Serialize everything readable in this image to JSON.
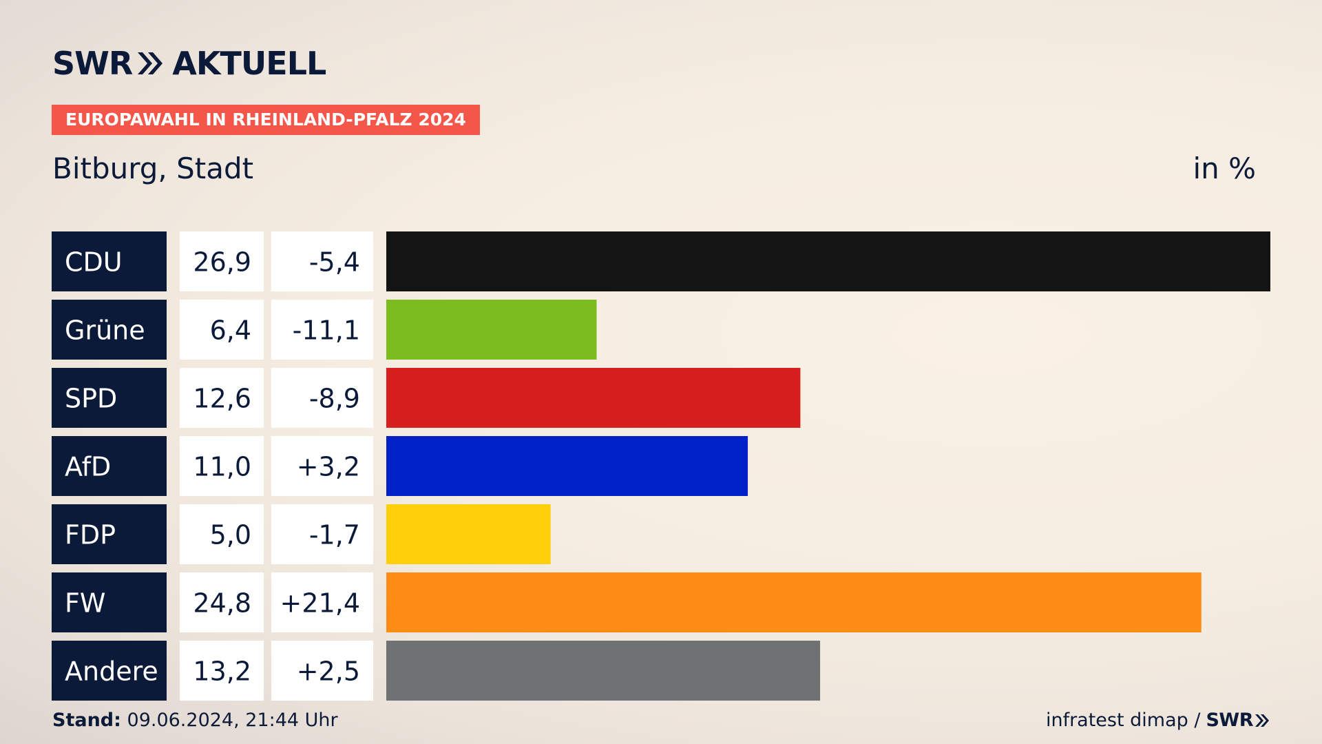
{
  "header": {
    "brand_left": "SWR",
    "brand_right": "AKTUELL",
    "badge": "EUROPAWAHL IN RHEINLAND-PFALZ 2024",
    "region": "Bitburg, Stadt",
    "unit": "in %"
  },
  "colors": {
    "brand_navy": "#0c1a3a",
    "badge_red": "#f4574a",
    "cell_bg": "#ffffff"
  },
  "chart_data": {
    "type": "bar",
    "orientation": "horizontal",
    "categories": [
      "CDU",
      "Grüne",
      "SPD",
      "AfD",
      "FDP",
      "FW",
      "Andere"
    ],
    "values": [
      26.9,
      6.4,
      12.6,
      11.0,
      5.0,
      24.8,
      13.2
    ],
    "value_labels": [
      "26,9",
      "6,4",
      "12,6",
      "11,0",
      "5,0",
      "24,8",
      "13,2"
    ],
    "change_labels": [
      "-5,4",
      "-11,1",
      "-8,9",
      "+3,2",
      "-1,7",
      "+21,4",
      "+2,5"
    ],
    "colors": [
      "#141414",
      "#7bbd1e",
      "#d81f1f",
      "#0021c8",
      "#ffcf0a",
      "#ff8c16",
      "#707172"
    ],
    "grid": false
  },
  "footer": {
    "stand_label": "Stand:",
    "stand_value": "09.06.2024, 21:44 Uhr",
    "source": "infratest dimap /",
    "source_brand": "SWR"
  }
}
